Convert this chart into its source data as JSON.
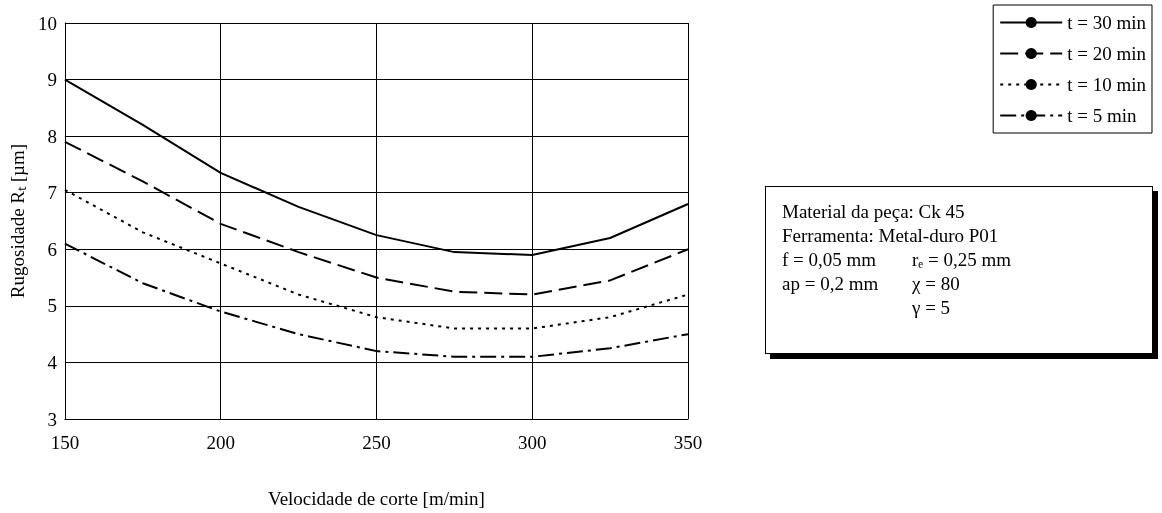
{
  "chart_data": {
    "type": "line",
    "xlabel": "Velocidade de corte [m/min]",
    "ylabel": "Rugosidade Rₜ [µm]",
    "x": [
      150,
      175,
      200,
      225,
      250,
      275,
      300,
      325,
      350
    ],
    "series": [
      {
        "name": "t = 30 min",
        "color": "#000000",
        "line_style": "solid",
        "values": [
          9.0,
          8.2,
          7.35,
          6.75,
          6.25,
          5.95,
          5.9,
          6.2,
          6.8
        ]
      },
      {
        "name": "t = 20 min",
        "color": "#000000",
        "line_style": "dashed",
        "values": [
          7.9,
          7.2,
          6.45,
          5.95,
          5.5,
          5.25,
          5.2,
          5.45,
          6.0
        ]
      },
      {
        "name": "t = 10 min",
        "color": "#000000",
        "line_style": "dotted",
        "values": [
          7.05,
          6.3,
          5.75,
          5.2,
          4.8,
          4.6,
          4.6,
          4.8,
          5.2
        ]
      },
      {
        "name": "t = 5 min",
        "color": "#000000",
        "line_style": "dashdot",
        "values": [
          6.1,
          5.4,
          4.9,
          4.5,
          4.2,
          4.1,
          4.1,
          4.25,
          4.5
        ]
      }
    ],
    "xlim": [
      150,
      350
    ],
    "xticks": [
      150,
      200,
      250,
      300,
      350
    ],
    "ylim": [
      3,
      10
    ],
    "yticks": [
      3,
      4,
      5,
      6,
      7,
      8,
      9,
      10
    ],
    "grid": true,
    "legend": "top right",
    "marker": "none",
    "annotations": [
      "Material da peça: Ck 45",
      "Ferramenta: Metal-duro  P01",
      "f = 0,05 mm",
      "rₑ = 0,25 mm",
      "ap = 0,2 mm",
      "χ = 80",
      "γ = 5"
    ]
  }
}
